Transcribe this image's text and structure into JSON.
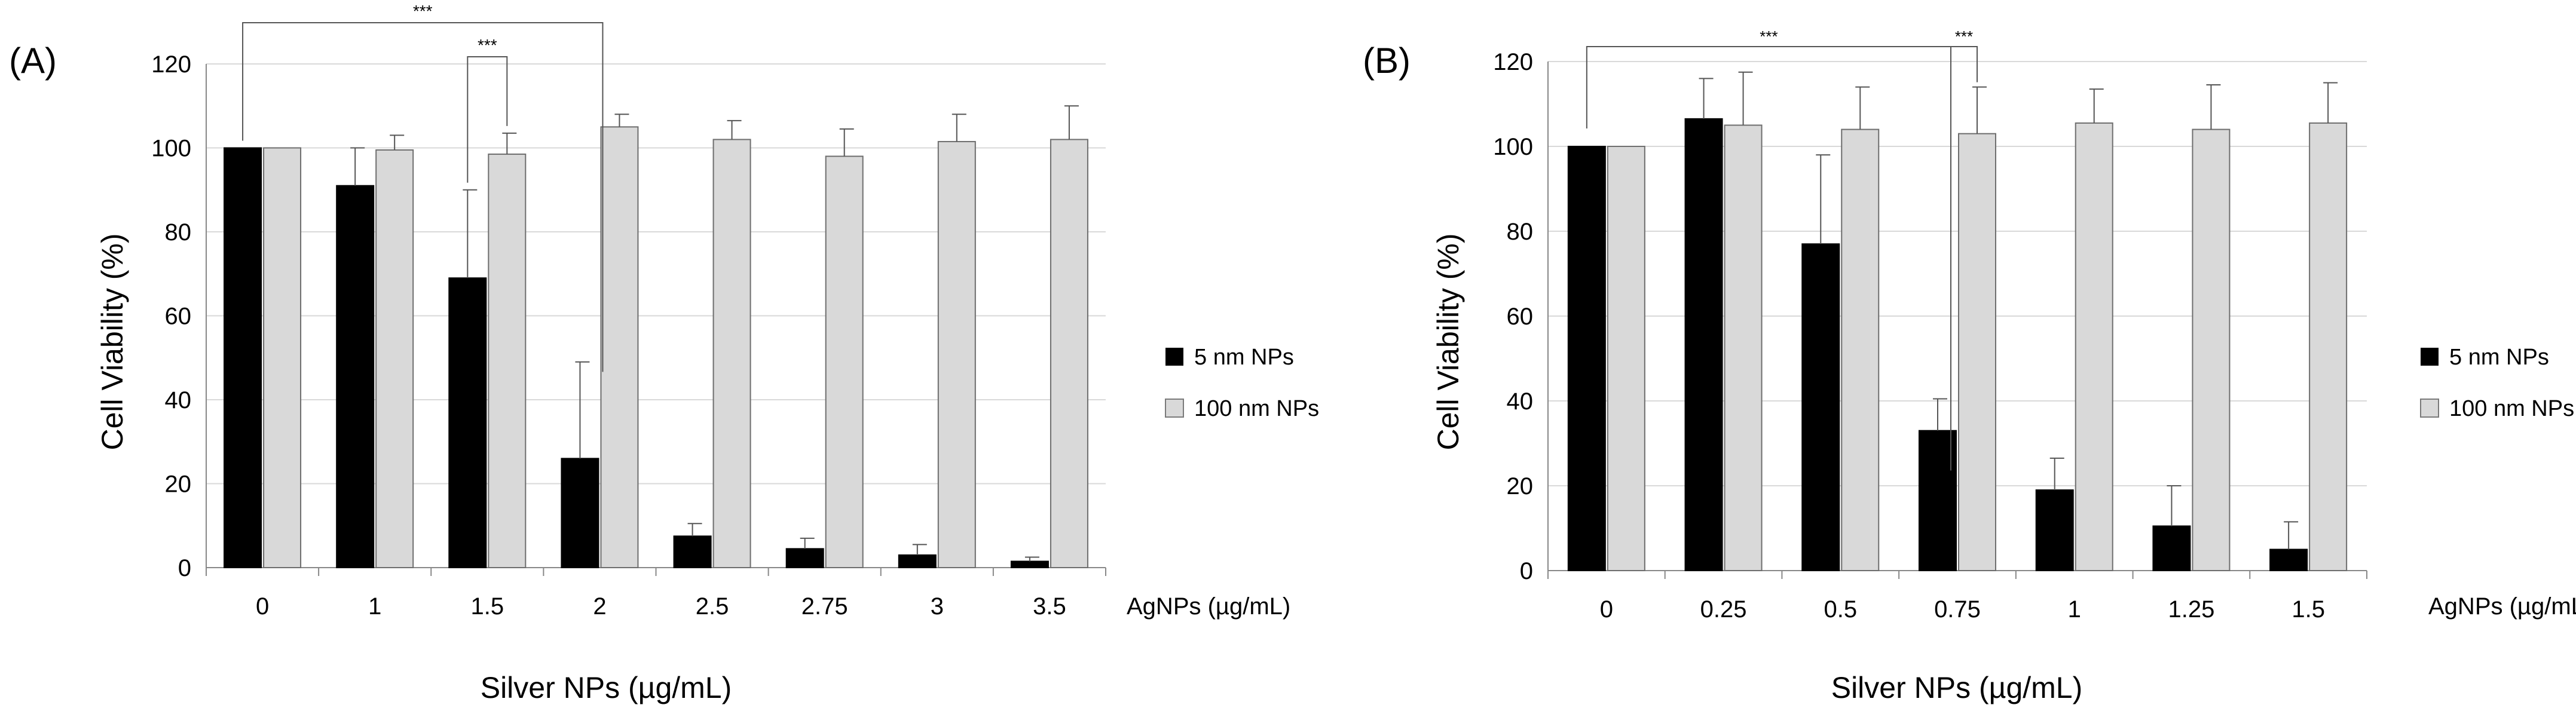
{
  "chart_data": [
    {
      "panel_label": "(A)",
      "type": "bar",
      "categories": [
        "0",
        "1",
        "1.5",
        "2",
        "2.5",
        "2.75",
        "3",
        "3.5"
      ],
      "series": [
        {
          "name": "5 nm NPs",
          "color": "#000000",
          "values": [
            100,
            91,
            69,
            26,
            7.5,
            4.5,
            3,
            1.5
          ],
          "errors": [
            0,
            9,
            21,
            23,
            3,
            2.5,
            2.5,
            1
          ]
        },
        {
          "name": "100 nm NPs",
          "color": "#d9d9d9",
          "values": [
            100,
            99.5,
            98.5,
            105,
            102,
            98,
            101.5,
            102
          ],
          "errors": [
            0,
            3.5,
            5,
            3,
            4.5,
            6.5,
            6.5,
            8
          ]
        }
      ],
      "xunit": "AgNPs (µg/mL)",
      "xlabel": "Silver NPs (µg/mL)",
      "ylabel": "Cell Viability (%)",
      "ylim": [
        0,
        120
      ],
      "yticks": [
        0,
        20,
        40,
        60,
        80,
        100,
        120
      ],
      "grid": true,
      "legend_position": "right",
      "significance": [
        {
          "label": "***",
          "from": {
            "category": 0,
            "series": 0
          },
          "to": {
            "category": 3,
            "series": 0
          }
        },
        {
          "label": "***",
          "from": {
            "category": 2,
            "series": 0
          },
          "to": {
            "category": 2,
            "series": 1
          }
        }
      ]
    },
    {
      "panel_label": "(B)",
      "type": "bar",
      "categories": [
        "0",
        "0.25",
        "0.5",
        "0.75",
        "1",
        "1.25",
        "1.5"
      ],
      "series": [
        {
          "name": "5 nm NPs",
          "color": "#000000",
          "values": [
            100,
            106.5,
            77,
            33,
            19,
            10.5,
            5
          ],
          "errors": [
            0,
            9.5,
            21,
            7.5,
            7.5,
            9.5,
            6.5
          ]
        },
        {
          "name": "100 nm NPs",
          "color": "#d9d9d9",
          "values": [
            100,
            105,
            104,
            103,
            105.5,
            104,
            105.5
          ],
          "errors": [
            0,
            12.5,
            10,
            11,
            8,
            10.5,
            9.5
          ]
        }
      ],
      "xunit": "AgNPs (µg/mL)",
      "xlabel": "Silver NPs (µg/mL)",
      "ylabel": "Cell Viability (%)",
      "ylim": [
        0,
        120
      ],
      "yticks": [
        0,
        20,
        40,
        60,
        80,
        100,
        120
      ],
      "grid": true,
      "legend_position": "right",
      "significance": [
        {
          "label": "***",
          "from": {
            "category": 0,
            "series": 0
          },
          "to": {
            "category": 3,
            "series": 0
          }
        },
        {
          "label": "***",
          "from": {
            "category": 3,
            "series": 1
          },
          "to": {
            "category": 3,
            "series": 1
          }
        }
      ]
    }
  ]
}
